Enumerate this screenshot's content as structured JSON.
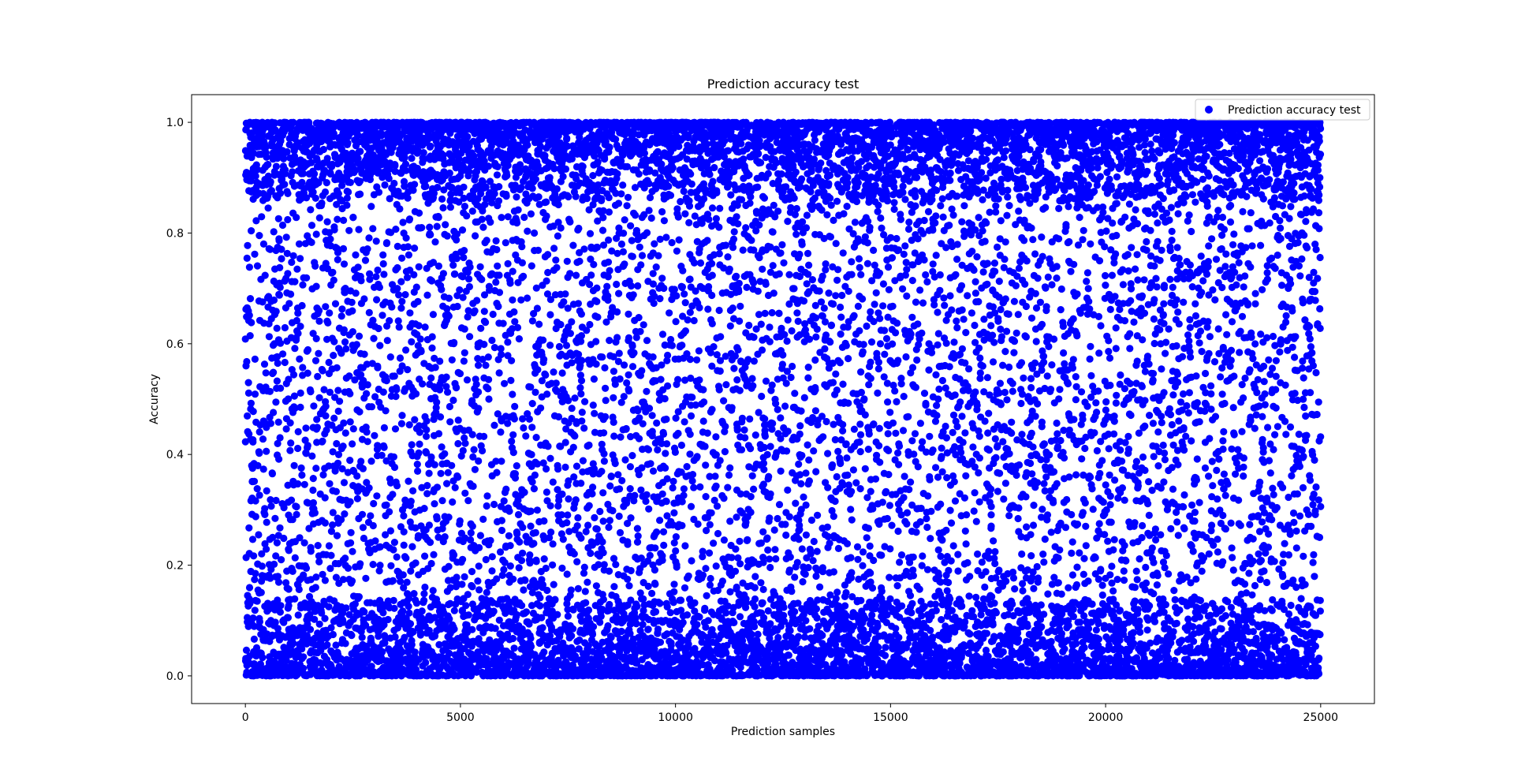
{
  "chart_data": {
    "type": "scatter",
    "title": "Prediction accuracy test",
    "xlabel": "Prediction samples",
    "ylabel": "Accuracy",
    "xlim": [
      -1250,
      26250
    ],
    "ylim": [
      -0.05,
      1.05
    ],
    "xticks": [
      0,
      5000,
      10000,
      15000,
      20000,
      25000
    ],
    "xtick_labels": [
      "0",
      "5000",
      "10000",
      "15000",
      "20000",
      "25000"
    ],
    "yticks": [
      0.0,
      0.2,
      0.4,
      0.6,
      0.8,
      1.0
    ],
    "ytick_labels": [
      "0.0",
      "0.2",
      "0.4",
      "0.6",
      "0.8",
      "1.0"
    ],
    "grid": false,
    "legend": {
      "position": "top-right",
      "entries": [
        "Prediction accuracy test"
      ]
    },
    "series": [
      {
        "name": "Prediction accuracy test",
        "color": "#0000ff",
        "marker": "circle",
        "x_range": [
          0,
          25000
        ],
        "y_range": [
          0.0,
          1.0
        ],
        "n_points": 25000,
        "distribution": "dense bands near 0.0 and 1.0, sparser uniform spread in between"
      }
    ]
  }
}
